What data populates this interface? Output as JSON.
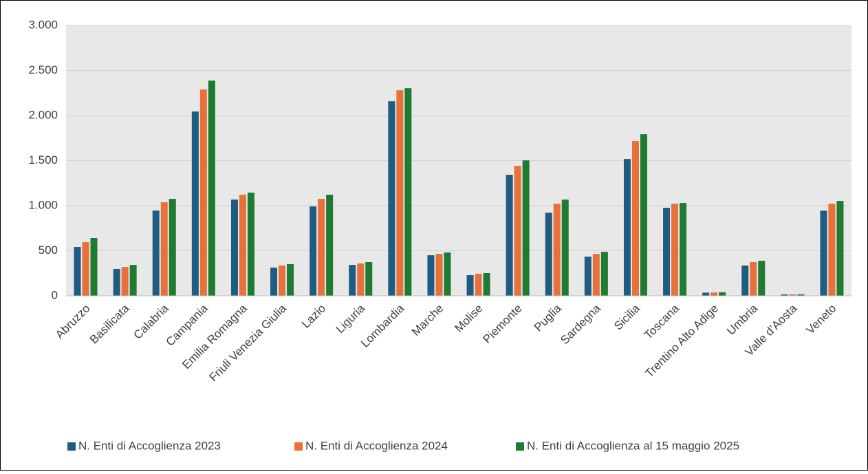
{
  "chart_data": {
    "type": "bar",
    "categories": [
      "Abruzzo",
      "Basilicata",
      "Calabria",
      "Campania",
      "Emilia Romagna",
      "Friuli Venezia Giulia",
      "Lazio",
      "Liguria",
      "Lombardia",
      "Marche",
      "Molise",
      "Piemonte",
      "Puglia",
      "Sardegna",
      "Sicilia",
      "Toscana",
      "Trentino Alto Adige",
      "Umbria",
      "Valle d’Aosta",
      "Veneto"
    ],
    "series": [
      {
        "name": "N. Enti di Accoglienza 2023",
        "color": "#1f5c82",
        "values": [
          542,
          298,
          946,
          2045,
          1068,
          313,
          992,
          343,
          2159,
          450,
          229,
          1343,
          923,
          435,
          1518,
          977,
          35,
          336,
          15,
          946
        ]
      },
      {
        "name": "N. Enti di Accoglienza 2024",
        "color": "#e8713a",
        "values": [
          595,
          320,
          1038,
          2289,
          1122,
          336,
          1076,
          359,
          2281,
          465,
          244,
          1442,
          1022,
          465,
          1717,
          1022,
          37,
          374,
          15,
          1022
        ]
      },
      {
        "name": "N. Enti di Accoglienza al 15 maggio 2025",
        "color": "#1f7a32",
        "values": [
          641,
          343,
          1076,
          2388,
          1145,
          351,
          1122,
          374,
          2304,
          481,
          252,
          1503,
          1068,
          488,
          1793,
          1030,
          40,
          389,
          16,
          1053
        ]
      }
    ],
    "ylim": [
      0,
      3000
    ],
    "yticks": [
      0,
      500,
      {
        "value": 1000,
        "label": "1.000"
      },
      {
        "value": 1500,
        "label": "1.500"
      },
      {
        "value": 2000,
        "label": "2.000"
      },
      {
        "value": 2500,
        "label": "2.500"
      },
      {
        "value": 3000,
        "label": "3.000"
      }
    ],
    "grid": true,
    "legend": "bottom"
  }
}
